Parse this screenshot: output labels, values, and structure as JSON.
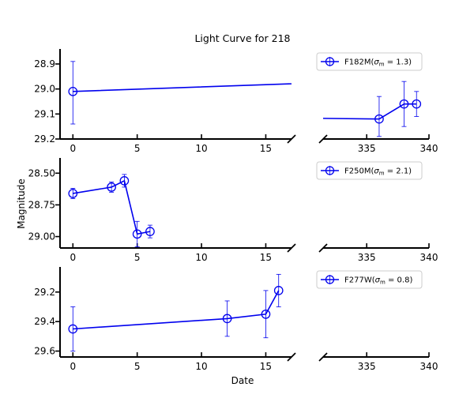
{
  "chart_data": {
    "type": "line",
    "title": "Light Curve for 218",
    "xlabel": "Date",
    "ylabel": "Magnitude",
    "y_inverted": true,
    "broken_x_axis": true,
    "x_segments": [
      [
        -1,
        17
      ],
      [
        331.5,
        340
      ]
    ],
    "panels": [
      {
        "series_name": "F182M",
        "legend_sigma_value": "1.3",
        "legend_position": "top-right",
        "ylim": [
          29.2,
          28.84
        ],
        "yticks": [
          28.9,
          29.0,
          29.1,
          29.2
        ],
        "ytick_labels": [
          "28.9",
          "29.0",
          "29.1",
          "29.2"
        ],
        "points": [
          {
            "x": 0,
            "y": 29.01,
            "err_lo": 0.13,
            "err_hi": 0.12
          },
          {
            "x": 33,
            "y": 28.95,
            "err_lo": 0.06,
            "err_hi": 0.06
          },
          {
            "x": 336,
            "y": 29.12,
            "err_lo": 0.07,
            "err_hi": 0.09
          },
          {
            "x": 338,
            "y": 29.06,
            "err_lo": 0.09,
            "err_hi": 0.09
          },
          {
            "x": 339,
            "y": 29.06,
            "err_lo": 0.05,
            "err_hi": 0.05
          }
        ]
      },
      {
        "series_name": "F250M",
        "legend_sigma_value": "2.1",
        "legend_position": "top-right",
        "ylim": [
          29.09,
          28.38
        ],
        "yticks": [
          28.5,
          28.75,
          29.0
        ],
        "ytick_labels": [
          "28.50",
          "28.75",
          "29.00"
        ],
        "points": [
          {
            "x": 0,
            "y": 28.66,
            "err_lo": 0.04,
            "err_hi": 0.04
          },
          {
            "x": 3,
            "y": 28.61,
            "err_lo": 0.04,
            "err_hi": 0.04
          },
          {
            "x": 4,
            "y": 28.56,
            "err_lo": 0.05,
            "err_hi": 0.05
          },
          {
            "x": 5,
            "y": 28.98,
            "err_lo": 0.1,
            "err_hi": 0.1
          },
          {
            "x": 6,
            "y": 28.96,
            "err_lo": 0.05,
            "err_hi": 0.05
          }
        ]
      },
      {
        "series_name": "F277W",
        "legend_sigma_value": "0.8",
        "legend_position": "top-right",
        "ylim": [
          29.64,
          29.03
        ],
        "yticks": [
          29.2,
          29.4,
          29.6
        ],
        "ytick_labels": [
          "29.2",
          "29.4",
          "29.6"
        ],
        "points": [
          {
            "x": 0,
            "y": 29.45,
            "err_lo": 0.15,
            "err_hi": 0.15
          },
          {
            "x": 12,
            "y": 29.38,
            "err_lo": 0.12,
            "err_hi": 0.12
          },
          {
            "x": 15,
            "y": 29.35,
            "err_lo": 0.16,
            "err_hi": 0.16
          },
          {
            "x": 16,
            "y": 29.19,
            "err_lo": 0.11,
            "err_hi": 0.11
          }
        ]
      }
    ],
    "xticks_left": [
      0,
      5,
      10,
      15
    ],
    "xtick_labels_left": [
      "0",
      "5",
      "10",
      "15"
    ],
    "xticks_right": [
      335,
      340
    ],
    "xtick_labels_right": [
      "335",
      "340"
    ],
    "colors": {
      "series": "#0000ee",
      "axes": "#000000"
    }
  }
}
